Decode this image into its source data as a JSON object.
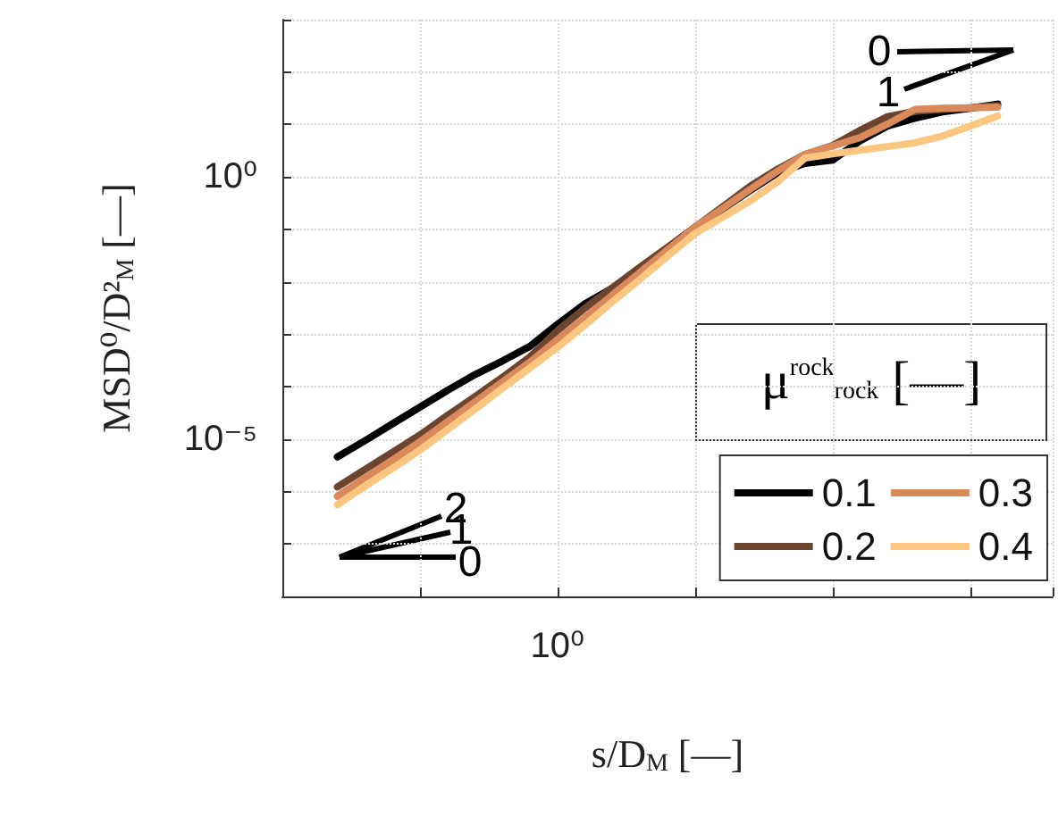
{
  "chart_data": {
    "type": "line",
    "xlabel": "s/D$_{M}$ [—]",
    "ylabel": "MSD⁰/D²$_{M}$ [—]",
    "legend_title": "μ$^{rock}$$_{rock}$ [—]",
    "log": "y",
    "grid": true,
    "legend": "bottom right",
    "ylim": [
      1e-08,
      1000
    ],
    "categories": [
      null,
      null,
      null,
      null,
      null,
      null,
      null,
      null,
      null,
      null,
      "10⁰",
      null,
      null,
      null,
      null,
      null,
      null,
      null,
      null,
      null,
      null,
      null,
      null,
      null,
      null,
      null,
      null,
      null,
      null
    ],
    "yticks": [
      {
        "value": 1e-08,
        "label": null
      },
      {
        "value": 1e-07,
        "label": null
      },
      {
        "value": 1e-06,
        "label": null
      },
      {
        "value": 1e-05,
        "label": "10⁻⁵"
      },
      {
        "value": 0.0001,
        "label": null
      },
      {
        "value": 0.001,
        "label": null
      },
      {
        "value": 0.01,
        "label": null
      },
      {
        "value": 0.1,
        "label": null
      },
      {
        "value": 1,
        "label": "10⁰"
      },
      {
        "value": 10,
        "label": null
      },
      {
        "value": 100,
        "label": null
      },
      {
        "value": 1000,
        "label": null
      }
    ],
    "annotations": [
      "2",
      "1",
      "0",
      "0",
      "1"
    ],
    "series": [
      {
        "name": "0.1",
        "color": "#000000",
        "values": [
          null,
          null,
          4.57e-06,
          9.33e-06,
          1.95e-05,
          4.07e-05,
          8.5e-05,
          0.00017,
          0.000309,
          0.000589,
          0.00155,
          0.0038,
          0.00759,
          0.017,
          0.0417,
          0.11,
          0.245,
          0.55,
          1.2,
          1.82,
          2.09,
          4.9,
          9.33,
          13.2,
          17.4,
          20.4,
          24.5,
          null,
          null
        ]
      },
      {
        "name": "0.2",
        "color": "#6b4530",
        "values": [
          null,
          null,
          1.23e-06,
          2.63e-06,
          5.62e-06,
          1.2e-05,
          2.82e-05,
          6.46e-05,
          0.000151,
          0.000372,
          0.00117,
          0.00316,
          0.00776,
          0.0191,
          0.0457,
          0.11,
          0.269,
          0.661,
          1.41,
          2.69,
          3.98,
          7.76,
          14.1,
          17.8,
          19.5,
          20.9,
          22.9,
          null,
          null
        ]
      },
      {
        "name": "0.3",
        "color": "#d9895a",
        "values": [
          null,
          null,
          8.13e-07,
          1.82e-06,
          3.98e-06,
          8.91e-06,
          2.14e-05,
          5.13e-05,
          0.000123,
          0.000295,
          0.000794,
          0.00209,
          0.00562,
          0.0151,
          0.0407,
          0.11,
          0.251,
          0.575,
          1.29,
          2.69,
          3.89,
          5.62,
          10.2,
          19.5,
          20.4,
          20.9,
          21.4,
          null,
          null
        ]
      },
      {
        "name": "0.4",
        "color": "#fdc680",
        "values": [
          null,
          null,
          5.62e-07,
          1.26e-06,
          2.75e-06,
          6.17e-06,
          1.51e-05,
          3.72e-05,
          9.33e-05,
          0.000229,
          0.000562,
          0.00151,
          0.00417,
          0.0112,
          0.0309,
          0.0832,
          0.17,
          0.347,
          0.813,
          2.29,
          2.75,
          3.24,
          3.8,
          4.47,
          6.03,
          9.33,
          14.5,
          null,
          null
        ]
      }
    ]
  }
}
